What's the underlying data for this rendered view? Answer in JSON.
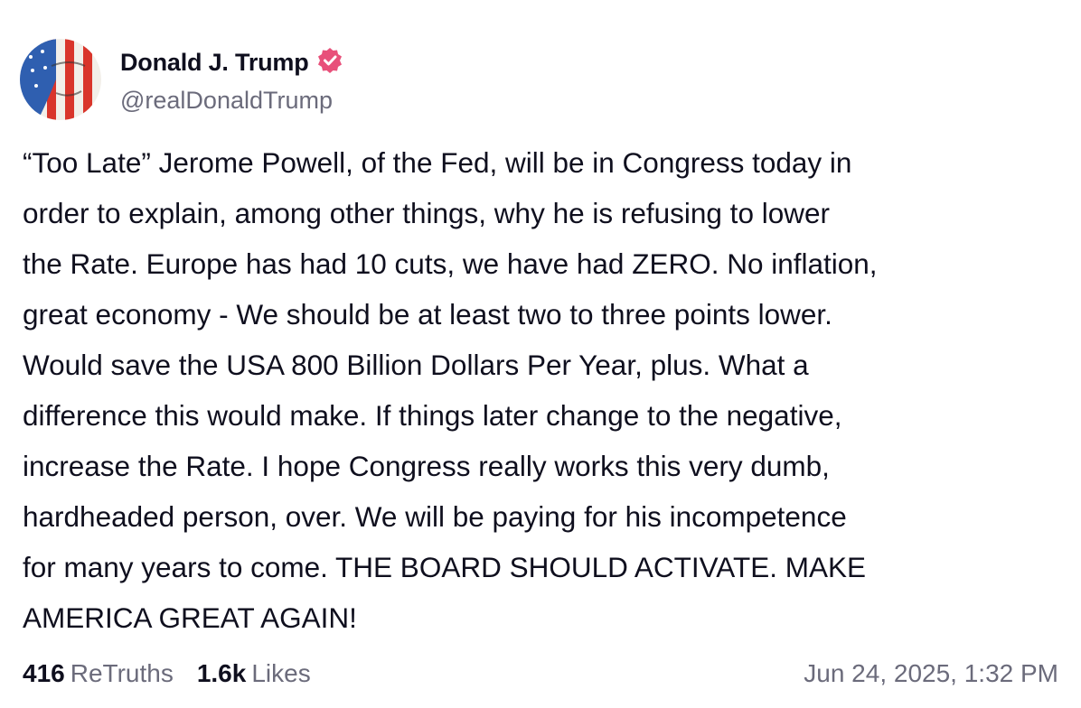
{
  "author": {
    "name": "Donald J. Trump",
    "handle": "@realDonaldTrump",
    "verified": true,
    "badge_color": "#e8507a",
    "avatar": "american-flag-face-avatar"
  },
  "post": {
    "lines": [
      "“Too Late” Jerome Powell, of the Fed, will be in Congress today in",
      "order to explain, among other things, why he is refusing to lower",
      "the Rate. Europe has had 10 cuts, we have had ZERO. No inflation,",
      "great economy - We should be at least two to three points lower.",
      "Would save the USA 800 Billion Dollars Per Year, plus. What a",
      "difference this would make. If things later change to the negative,",
      "increase the Rate. I hope Congress really works this very dumb,",
      "hardheaded person, over. We will be paying for his incompetence",
      "for many years to come. THE BOARD SHOULD ACTIVATE. MAKE",
      "AMERICA GREAT AGAIN!"
    ]
  },
  "stats": {
    "retruths_count": "416",
    "retruths_label": "ReTruths",
    "likes_count": "1.6k",
    "likes_label": "Likes"
  },
  "timestamp": "Jun 24, 2025, 1:32 PM"
}
